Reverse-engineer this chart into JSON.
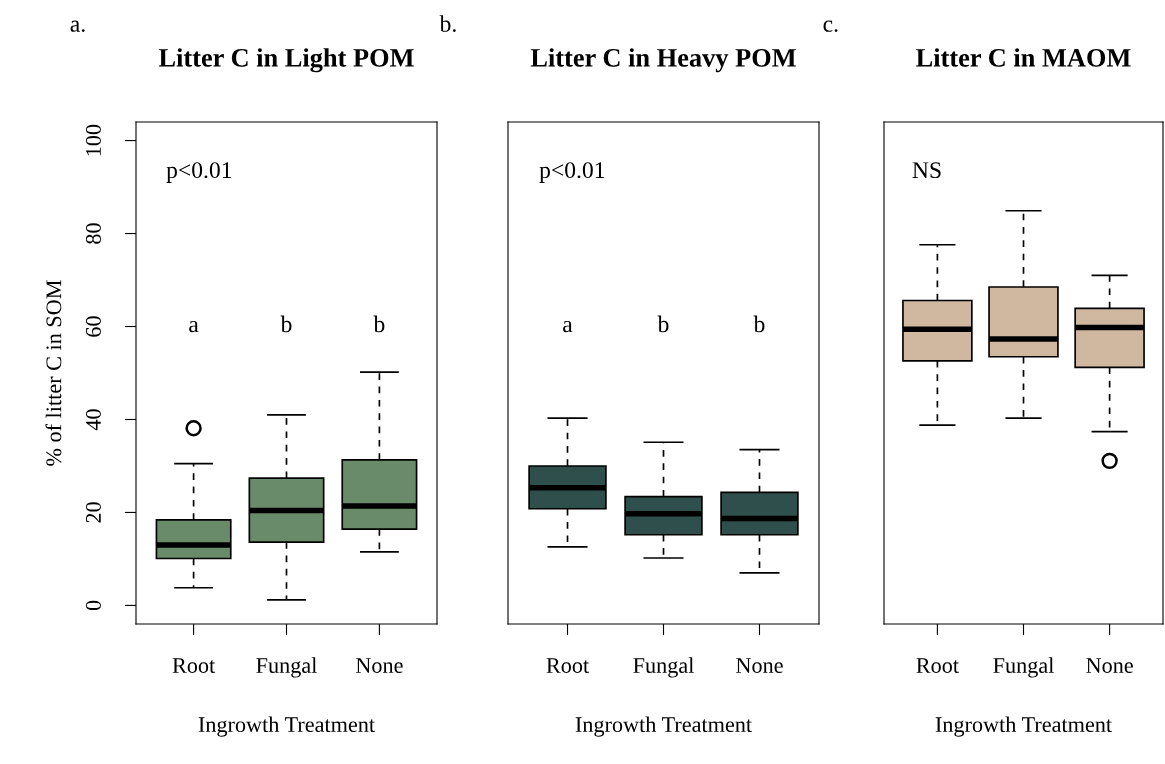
{
  "chart_data": [
    {
      "type": "box",
      "title": "Litter C in Light POM",
      "xlabel": "Ingrowth Treatment",
      "ylabel": "% of litter C in SOM",
      "categories": [
        "Root",
        "Fungal",
        "None"
      ],
      "ylim": [
        -4,
        104
      ],
      "yticks": [
        0,
        20,
        40,
        60,
        80,
        100
      ],
      "grid": false,
      "annotations": [
        "a.",
        "p<0.01",
        "a",
        "b",
        "b"
      ],
      "series": [
        {
          "color": "#6a8b6a",
          "boxes": [
            {
              "low": 3.8,
              "q1": 10.1,
              "median": 13.0,
              "q3": 18.4,
              "high": 30.5,
              "outliers": [
                38.1
              ]
            },
            {
              "low": 1.2,
              "q1": 13.6,
              "median": 20.4,
              "q3": 27.4,
              "high": 41.0
            },
            {
              "low": 11.5,
              "q1": 16.4,
              "median": 21.4,
              "q3": 31.3,
              "high": 50.2
            }
          ]
        }
      ]
    },
    {
      "type": "box",
      "title": "Litter C in Heavy POM",
      "xlabel": "Ingrowth Treatment",
      "categories": [
        "Root",
        "Fungal",
        "None"
      ],
      "ylim": [
        -4,
        104
      ],
      "tick_labels": "x",
      "grid": false,
      "annotations": [
        "b.",
        "p<0.01",
        "a",
        "b",
        "b"
      ],
      "series": [
        {
          "color": "#2f4f4c",
          "boxes": [
            {
              "low": 12.6,
              "q1": 20.8,
              "median": 25.3,
              "q3": 30.0,
              "high": 40.3
            },
            {
              "low": 10.2,
              "q1": 15.2,
              "median": 19.7,
              "q3": 23.4,
              "high": 35.1
            },
            {
              "low": 7.0,
              "q1": 15.2,
              "median": 18.7,
              "q3": 24.3,
              "high": 33.5
            }
          ]
        }
      ]
    },
    {
      "type": "box",
      "title": "Litter C in MAOM",
      "xlabel": "Ingrowth Treatment",
      "categories": [
        "Root",
        "Fungal",
        "None"
      ],
      "ylim": [
        -4,
        104
      ],
      "tick_labels": "x",
      "grid": false,
      "annotations": [
        "c.",
        "NS"
      ],
      "series": [
        {
          "color": "#cfb89f",
          "boxes": [
            {
              "low": 38.8,
              "q1": 52.6,
              "median": 59.4,
              "q3": 65.6,
              "high": 77.6
            },
            {
              "low": 40.3,
              "q1": 53.5,
              "median": 57.3,
              "q3": 68.5,
              "high": 84.9
            },
            {
              "low": 37.4,
              "q1": 51.2,
              "median": 59.8,
              "q3": 63.9,
              "high": 71.0,
              "outliers": [
                31.1
              ]
            }
          ]
        }
      ]
    }
  ]
}
